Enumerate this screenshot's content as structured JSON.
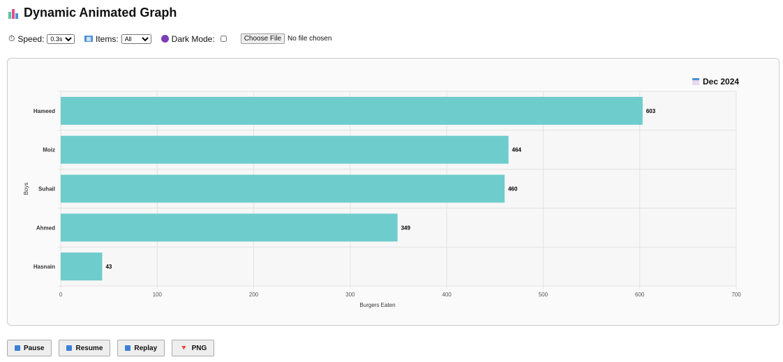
{
  "header": {
    "title": "Dynamic Animated Graph",
    "icon": "bar-chart-icon"
  },
  "controls": {
    "speed_label": "Speed:",
    "speed_value": "0.3s",
    "items_label": "Items:",
    "items_value": "All",
    "dark_mode_label": "Dark Mode:",
    "dark_mode_checked": false,
    "file_button": "Choose File",
    "file_status": "No file chosen"
  },
  "period": "Dec 2024",
  "buttons": {
    "pause": "Pause",
    "resume": "Resume",
    "replay": "Replay",
    "png": "PNG"
  },
  "chart_data": {
    "type": "bar",
    "orientation": "horizontal",
    "categories": [
      "Hameed",
      "Moiz",
      "Suhail",
      "Ahmed",
      "Hasnain"
    ],
    "values": [
      603,
      464,
      460,
      349,
      43
    ],
    "xlabel": "Burgers Eaten",
    "ylabel": "Boys",
    "xlim": [
      0,
      700
    ],
    "xticks": [
      0,
      100,
      200,
      300,
      400,
      500,
      600,
      700
    ],
    "grid": true,
    "bar_color": "#6fcccc"
  }
}
